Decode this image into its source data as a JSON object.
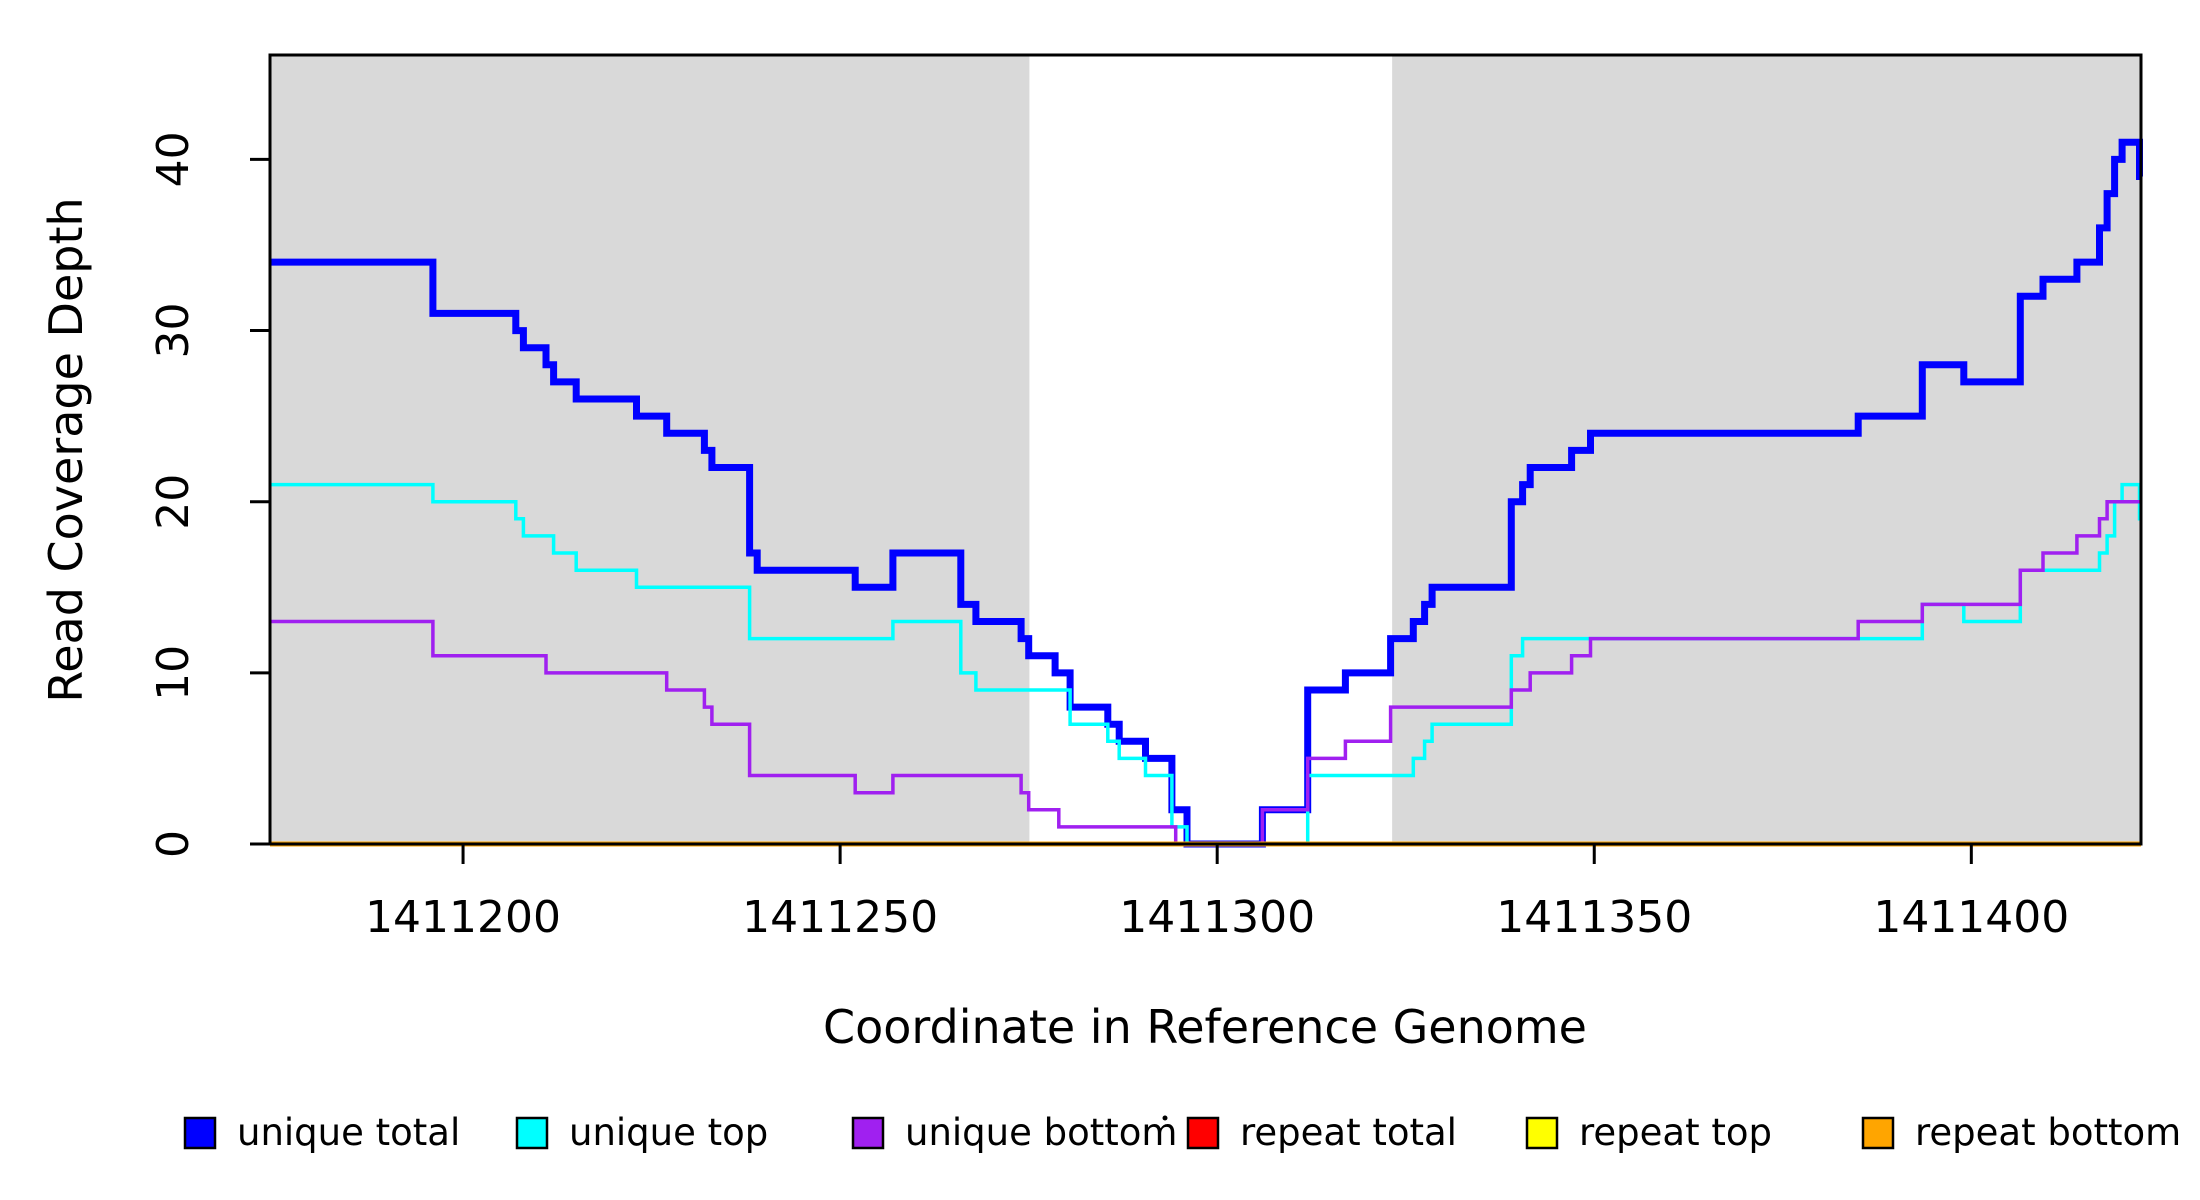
{
  "chart_data": {
    "type": "line",
    "subtype": "step",
    "title": "",
    "xlabel": "Coordinate in Reference Genome",
    "ylabel": "Read Coverage Depth",
    "xlim": [
      1411174.4,
      1411422.5
    ],
    "ylim": [
      0,
      46.1
    ],
    "x_ticks": [
      1411200,
      1411250,
      1411300,
      1411350,
      1411400
    ],
    "x_tick_labels": [
      "1411200",
      "1411250",
      "1411300",
      "1411350",
      "1411400"
    ],
    "y_ticks": [
      0,
      10,
      20,
      30,
      40
    ],
    "y_tick_labels": [
      "0",
      "10",
      "20",
      "30",
      "40"
    ],
    "grid": false,
    "legend_position": "bottom",
    "plot_background": "#ffffff",
    "shaded_regions": [
      {
        "name": "gray-region-left",
        "from": 1411174.4,
        "to": 1411275.1,
        "color": "#D9D9D9"
      },
      {
        "name": "gray-region-right",
        "from": 1411323.2,
        "to": 1411422.5,
        "color": "#D9D9D9"
      }
    ],
    "series": [
      {
        "name": "unique total",
        "color": "#0000FF",
        "width": 7,
        "steps": [
          [
            1411174.4,
            34
          ],
          [
            1411196,
            31
          ],
          [
            1411207,
            30
          ],
          [
            1411208,
            29
          ],
          [
            1411211,
            28
          ],
          [
            1411212,
            27
          ],
          [
            1411215,
            26
          ],
          [
            1411223,
            25
          ],
          [
            1411227,
            24
          ],
          [
            1411232,
            23
          ],
          [
            1411233,
            22
          ],
          [
            1411238,
            17
          ],
          [
            1411239,
            16
          ],
          [
            1411252,
            15
          ],
          [
            1411257,
            17
          ],
          [
            1411266,
            14
          ],
          [
            1411268,
            13
          ],
          [
            1411274,
            12
          ],
          [
            1411275,
            11
          ],
          [
            1411278.5,
            10
          ],
          [
            1411280.5,
            8
          ],
          [
            1411285.5,
            7
          ],
          [
            1411287,
            6
          ],
          [
            1411290.5,
            5
          ],
          [
            1411294,
            2
          ],
          [
            1411296,
            0
          ],
          [
            1411306,
            2
          ],
          [
            1411312,
            9
          ],
          [
            1411317,
            10
          ],
          [
            1411323,
            12
          ],
          [
            1411326,
            13
          ],
          [
            1411327.5,
            14
          ],
          [
            1411328.5,
            15
          ],
          [
            1411339,
            20
          ],
          [
            1411340.5,
            21
          ],
          [
            1411341.5,
            22
          ],
          [
            1411347,
            23
          ],
          [
            1411349.5,
            24
          ],
          [
            1411385,
            25
          ],
          [
            1411393.5,
            28
          ],
          [
            1411399,
            27
          ],
          [
            1411406.5,
            32
          ],
          [
            1411409.5,
            33
          ],
          [
            1411414,
            34
          ],
          [
            1411417,
            36
          ],
          [
            1411418,
            38
          ],
          [
            1411419,
            40
          ],
          [
            1411420,
            41
          ],
          [
            1411422.3,
            39
          ]
        ]
      },
      {
        "name": "unique top",
        "color": "#00FFFF",
        "width": 3.5,
        "steps": [
          [
            1411174.4,
            21
          ],
          [
            1411196,
            20
          ],
          [
            1411207,
            19
          ],
          [
            1411208,
            18
          ],
          [
            1411212,
            17
          ],
          [
            1411215,
            16
          ],
          [
            1411223,
            15
          ],
          [
            1411238,
            12
          ],
          [
            1411257,
            13
          ],
          [
            1411266,
            10
          ],
          [
            1411268,
            9
          ],
          [
            1411280.5,
            7
          ],
          [
            1411285.5,
            6
          ],
          [
            1411287,
            5
          ],
          [
            1411290.5,
            4
          ],
          [
            1411294,
            1
          ],
          [
            1411296,
            0
          ],
          [
            1411312,
            4
          ],
          [
            1411326,
            5
          ],
          [
            1411327.5,
            6
          ],
          [
            1411328.5,
            7
          ],
          [
            1411339,
            11
          ],
          [
            1411340.5,
            12
          ],
          [
            1411393.5,
            14
          ],
          [
            1411399,
            13
          ],
          [
            1411406.5,
            16
          ],
          [
            1411417,
            17
          ],
          [
            1411418,
            18
          ],
          [
            1411419,
            20
          ],
          [
            1411420,
            21
          ],
          [
            1411422.3,
            19
          ]
        ]
      },
      {
        "name": "unique bottom",
        "color": "#A020F0",
        "width": 3.5,
        "steps": [
          [
            1411174.4,
            13
          ],
          [
            1411196,
            11
          ],
          [
            1411211,
            10
          ],
          [
            1411227,
            9
          ],
          [
            1411232,
            8
          ],
          [
            1411233,
            7
          ],
          [
            1411238,
            4
          ],
          [
            1411252,
            3
          ],
          [
            1411257,
            4
          ],
          [
            1411274,
            3
          ],
          [
            1411275,
            2
          ],
          [
            1411279,
            1
          ],
          [
            1411294.5,
            0
          ],
          [
            1411306,
            2
          ],
          [
            1411312,
            5
          ],
          [
            1411317,
            6
          ],
          [
            1411323,
            8
          ],
          [
            1411339,
            9
          ],
          [
            1411341.5,
            10
          ],
          [
            1411347,
            11
          ],
          [
            1411349.5,
            12
          ],
          [
            1411385,
            13
          ],
          [
            1411393.5,
            14
          ],
          [
            1411406.5,
            16
          ],
          [
            1411409.5,
            17
          ],
          [
            1411414,
            18
          ],
          [
            1411417,
            19
          ],
          [
            1411418,
            20
          ]
        ]
      },
      {
        "name": "repeat total",
        "color": "#FF0000",
        "width": 5,
        "steps": [
          [
            1411174.4,
            0
          ]
        ]
      },
      {
        "name": "repeat top",
        "color": "#FFFF00",
        "width": 3.5,
        "steps": [
          [
            1411174.4,
            0
          ]
        ]
      },
      {
        "name": "repeat bottom",
        "color": "#FFA500",
        "width": 5,
        "steps": [
          [
            1411174.4,
            0
          ]
        ]
      }
    ],
    "legend": [
      {
        "label": "unique total",
        "color": "#0000FF"
      },
      {
        "label": "unique top",
        "color": "#00FFFF"
      },
      {
        "label": "unique bottom",
        "color": "#A020F0"
      },
      {
        "label": "repeat total",
        "color": "#FF0000"
      },
      {
        "label": "repeat top",
        "color": "#FFFF00"
      },
      {
        "label": "repeat bottom",
        "color": "#FFA500"
      }
    ],
    "axis_color": "#000000"
  }
}
